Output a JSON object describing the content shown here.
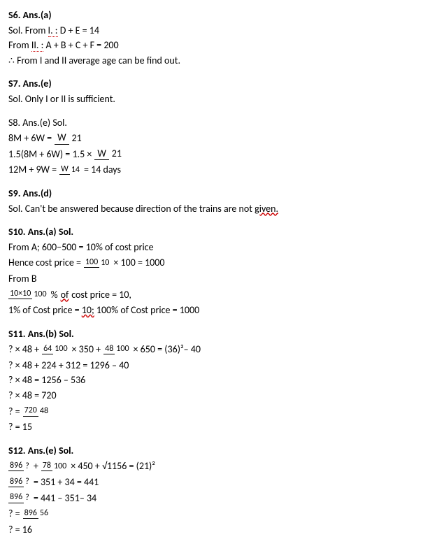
{
  "s6": {
    "header": "S6. Ans.(a)",
    "l1a": "Sol. From ",
    "l1b": "I. :",
    "l1c": " D + E = 14",
    "l2a": "From ",
    "l2b": "II. :",
    "l2c": " A + B + C + F = 200",
    "l3": "∴ From I and II average age can be find out."
  },
  "s7": {
    "header": "S7. Ans.(e)",
    "l1": "Sol. Only I or II is sufficient."
  },
  "s8": {
    "header": "S8. Ans.(e) Sol.",
    "eq1l": "8M + 6W =",
    "eq1n": "W",
    "eq1d": "21",
    "eq2l": "1.5(8M + 6W) = 1.5 ×",
    "eq2n": "W",
    "eq2d": "21",
    "eq3l": "12M + 9W =",
    "eq3n": "W",
    "eq3d": "14",
    "eq3r": "= 14 days"
  },
  "s9": {
    "header": "S9. Ans.(d)",
    "l1a": "Sol. Can't be answered because direction of the trains are not ",
    "l1b": "given."
  },
  "s10": {
    "header": "S10. Ans.(a) Sol.",
    "l1": "From A; 600−500 = 10% of cost price",
    "l2a": "Hence cost price =",
    "l2n": "100",
    "l2d": "10",
    "l2b": "× 100 = 1000",
    "l3": "From B",
    "l4n": "10×10",
    "l4d": "100",
    "l4a": "%",
    "l4b": " of",
    "l4c": " cost price = 10,",
    "l5a": "1% of Cost price = ",
    "l5b": "10;",
    "l5c": " 100% of Cost price = 1000"
  },
  "s11": {
    "header": "S11. Ans.(b) Sol.",
    "l1a": "? × 48 +",
    "l1n1": "64",
    "l1d1": "100",
    "l1b": "× 350 +",
    "l1n2": "48",
    "l1d2": "100",
    "l1c": "× 650 = (36)²– 40",
    "l2": "? × 48 + 224 + 312 = 1296 – 40",
    "l3": "? × 48 = 1256 – 536",
    "l4": "? × 48 = 720",
    "l5a": "? =",
    "l5n": "720",
    "l5d": "48",
    "l6": "? = 15"
  },
  "s12": {
    "header": "S12. Ans.(e) Sol.",
    "l1n1": "896",
    "l1d1": "?",
    "l1a": "+",
    "l1n2": "78",
    "l1d2": "100",
    "l1b": "× 450 + √1156 = (21)²",
    "l2n": "896",
    "l2d": "?",
    "l2a": "= 351 + 34 = 441",
    "l3n": "896",
    "l3d": "?",
    "l3a": "= 441 – 351– 34",
    "l4a": "? =",
    "l4n": "896",
    "l4d": "56",
    "l5": "? = 16"
  }
}
